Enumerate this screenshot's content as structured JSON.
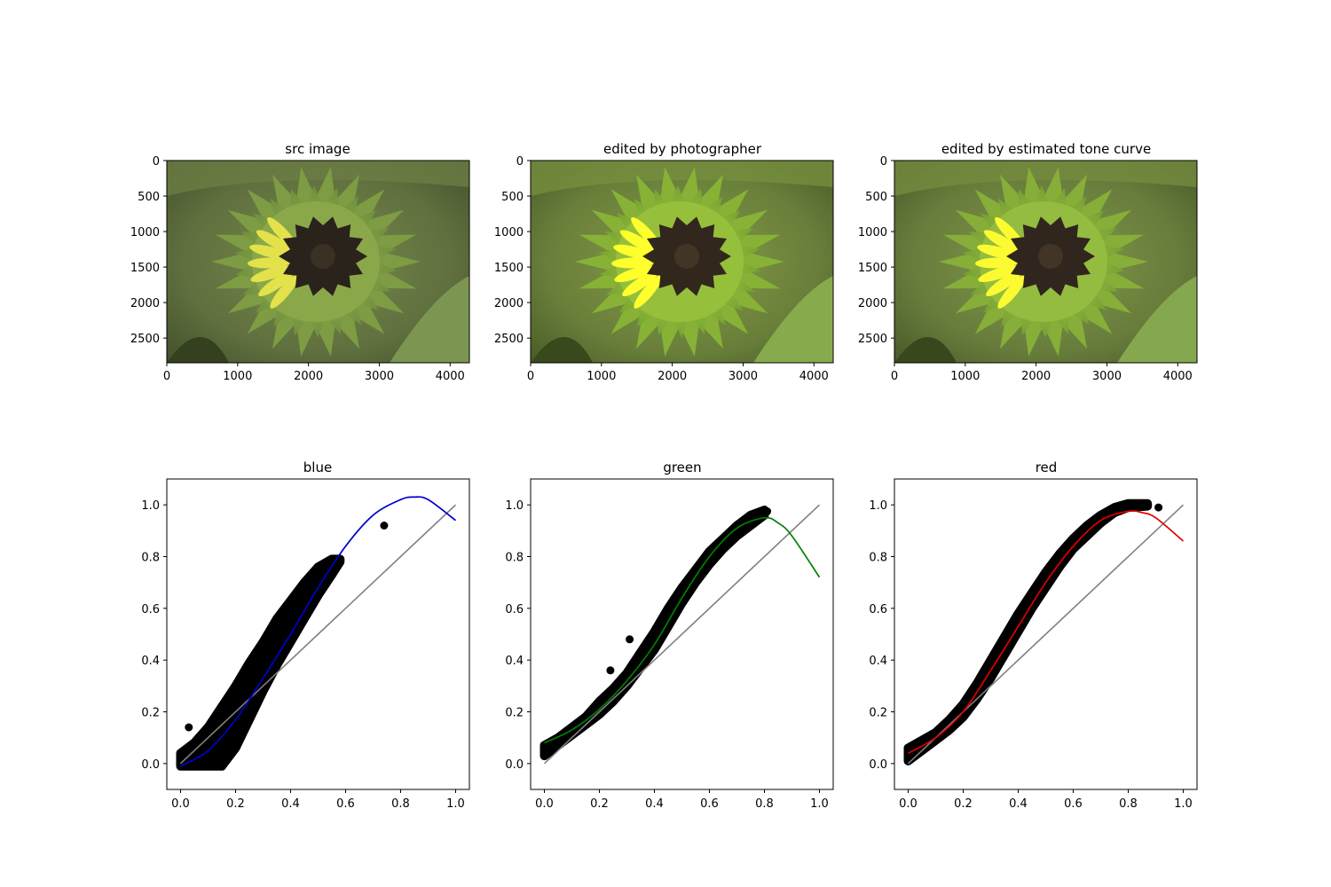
{
  "figure": {
    "images": [
      {
        "title": "src image",
        "variant": "src",
        "xlim": [
          0,
          4272
        ],
        "ylim": [
          2848,
          0
        ],
        "xticks": [
          0,
          1000,
          2000,
          3000,
          4000
        ],
        "yticks": [
          0,
          500,
          1000,
          1500,
          2000,
          2500
        ]
      },
      {
        "title": "edited by photographer",
        "variant": "photographer",
        "xlim": [
          0,
          4272
        ],
        "ylim": [
          2848,
          0
        ],
        "xticks": [
          0,
          1000,
          2000,
          3000,
          4000
        ],
        "yticks": [
          0,
          500,
          1000,
          1500,
          2000,
          2500
        ]
      },
      {
        "title": "edited by estimated tone curve",
        "variant": "estimated",
        "xlim": [
          0,
          4272
        ],
        "ylim": [
          2848,
          0
        ],
        "xticks": [
          0,
          1000,
          2000,
          3000,
          4000
        ],
        "yticks": [
          0,
          500,
          1000,
          1500,
          2000,
          2500
        ]
      }
    ],
    "photo_colors": {
      "background": "#5c6a3c",
      "bracts": "#7e9d45",
      "petals": "#e3e24a",
      "disk": "#2a231c"
    }
  },
  "chart_data": [
    {
      "type": "scatter",
      "title": "blue",
      "xlim": [
        -0.05,
        1.05
      ],
      "ylim": [
        -0.1,
        1.1
      ],
      "xticks": [
        "0.0",
        "0.2",
        "0.4",
        "0.6",
        "0.8",
        "1.0"
      ],
      "yticks": [
        "0.0",
        "0.2",
        "0.4",
        "0.6",
        "0.8",
        "1.0"
      ],
      "curve_color": "#0000cc",
      "fit_curve": {
        "x": [
          0.0,
          0.1,
          0.2,
          0.3,
          0.4,
          0.5,
          0.6,
          0.7,
          0.8,
          0.85,
          0.9,
          1.0
        ],
        "y": [
          -0.01,
          0.05,
          0.17,
          0.33,
          0.5,
          0.68,
          0.84,
          0.96,
          1.02,
          1.03,
          1.02,
          0.94
        ]
      },
      "points": [
        [
          0.0,
          0.0
        ],
        [
          0.05,
          0.04
        ],
        [
          0.1,
          0.08
        ],
        [
          0.15,
          0.12
        ],
        [
          0.2,
          0.18
        ],
        [
          0.25,
          0.25
        ],
        [
          0.3,
          0.33
        ],
        [
          0.35,
          0.42
        ],
        [
          0.4,
          0.5
        ],
        [
          0.45,
          0.59
        ],
        [
          0.5,
          0.67
        ],
        [
          0.55,
          0.76
        ],
        [
          0.57,
          0.78
        ],
        [
          0.74,
          0.92
        ],
        [
          0.03,
          0.14
        ]
      ],
      "band": {
        "x": [
          0.0,
          0.05,
          0.1,
          0.15,
          0.2,
          0.25,
          0.3,
          0.35,
          0.4,
          0.45,
          0.5,
          0.55,
          0.58
        ],
        "lo": [
          -0.01,
          -0.01,
          -0.01,
          -0.01,
          0.06,
          0.17,
          0.28,
          0.38,
          0.47,
          0.56,
          0.65,
          0.73,
          0.78
        ],
        "hi": [
          0.04,
          0.08,
          0.14,
          0.22,
          0.3,
          0.39,
          0.47,
          0.56,
          0.63,
          0.7,
          0.76,
          0.79,
          0.79
        ]
      }
    },
    {
      "type": "scatter",
      "title": "green",
      "xlim": [
        -0.05,
        1.05
      ],
      "ylim": [
        -0.1,
        1.1
      ],
      "xticks": [
        "0.0",
        "0.2",
        "0.4",
        "0.6",
        "0.8",
        "1.0"
      ],
      "yticks": [
        "0.0",
        "0.2",
        "0.4",
        "0.6",
        "0.8",
        "1.0"
      ],
      "curve_color": "#008000",
      "fit_curve": {
        "x": [
          0.0,
          0.1,
          0.2,
          0.3,
          0.4,
          0.5,
          0.6,
          0.7,
          0.8,
          0.85,
          0.9,
          1.0
        ],
        "y": [
          0.08,
          0.13,
          0.21,
          0.32,
          0.46,
          0.64,
          0.8,
          0.91,
          0.95,
          0.93,
          0.88,
          0.72
        ]
      },
      "points": [
        [
          0.0,
          0.05
        ],
        [
          0.1,
          0.13
        ],
        [
          0.2,
          0.21
        ],
        [
          0.3,
          0.32
        ],
        [
          0.4,
          0.46
        ],
        [
          0.5,
          0.63
        ],
        [
          0.6,
          0.79
        ],
        [
          0.7,
          0.91
        ],
        [
          0.78,
          0.97
        ],
        [
          0.81,
          0.975
        ],
        [
          0.31,
          0.48
        ],
        [
          0.24,
          0.36
        ]
      ],
      "band": {
        "x": [
          0.0,
          0.05,
          0.1,
          0.15,
          0.2,
          0.25,
          0.3,
          0.35,
          0.4,
          0.45,
          0.5,
          0.55,
          0.6,
          0.65,
          0.7,
          0.75,
          0.8
        ],
        "lo": [
          0.03,
          0.07,
          0.11,
          0.15,
          0.19,
          0.24,
          0.3,
          0.37,
          0.44,
          0.53,
          0.62,
          0.7,
          0.77,
          0.83,
          0.88,
          0.92,
          0.96
        ],
        "hi": [
          0.07,
          0.1,
          0.14,
          0.18,
          0.24,
          0.29,
          0.35,
          0.43,
          0.51,
          0.6,
          0.68,
          0.75,
          0.82,
          0.87,
          0.92,
          0.96,
          0.98
        ]
      }
    },
    {
      "type": "scatter",
      "title": "red",
      "xlim": [
        -0.05,
        1.05
      ],
      "ylim": [
        -0.1,
        1.1
      ],
      "xticks": [
        "0.0",
        "0.2",
        "0.4",
        "0.6",
        "0.8",
        "1.0"
      ],
      "yticks": [
        "0.0",
        "0.2",
        "0.4",
        "0.6",
        "0.8",
        "1.0"
      ],
      "curve_color": "#e00000",
      "fit_curve": {
        "x": [
          0.0,
          0.1,
          0.2,
          0.3,
          0.4,
          0.5,
          0.6,
          0.7,
          0.8,
          0.85,
          0.9,
          1.0
        ],
        "y": [
          0.04,
          0.1,
          0.2,
          0.36,
          0.53,
          0.7,
          0.84,
          0.94,
          0.975,
          0.97,
          0.95,
          0.86
        ]
      },
      "points": [
        [
          0.0,
          0.03
        ],
        [
          0.1,
          0.1
        ],
        [
          0.2,
          0.2
        ],
        [
          0.3,
          0.36
        ],
        [
          0.4,
          0.53
        ],
        [
          0.5,
          0.7
        ],
        [
          0.6,
          0.84
        ],
        [
          0.7,
          0.94
        ],
        [
          0.8,
          1.0
        ],
        [
          0.85,
          1.0
        ],
        [
          0.91,
          0.99
        ]
      ],
      "band": {
        "x": [
          0.0,
          0.05,
          0.1,
          0.15,
          0.2,
          0.25,
          0.3,
          0.35,
          0.4,
          0.45,
          0.5,
          0.55,
          0.6,
          0.65,
          0.7,
          0.75,
          0.8,
          0.87
        ],
        "lo": [
          0.01,
          0.05,
          0.09,
          0.13,
          0.18,
          0.25,
          0.33,
          0.42,
          0.51,
          0.6,
          0.68,
          0.76,
          0.83,
          0.88,
          0.93,
          0.97,
          0.99,
          0.995
        ],
        "hi": [
          0.06,
          0.09,
          0.12,
          0.17,
          0.23,
          0.31,
          0.4,
          0.49,
          0.58,
          0.66,
          0.74,
          0.81,
          0.87,
          0.92,
          0.96,
          0.99,
          1.005,
          1.005
        ]
      }
    }
  ]
}
